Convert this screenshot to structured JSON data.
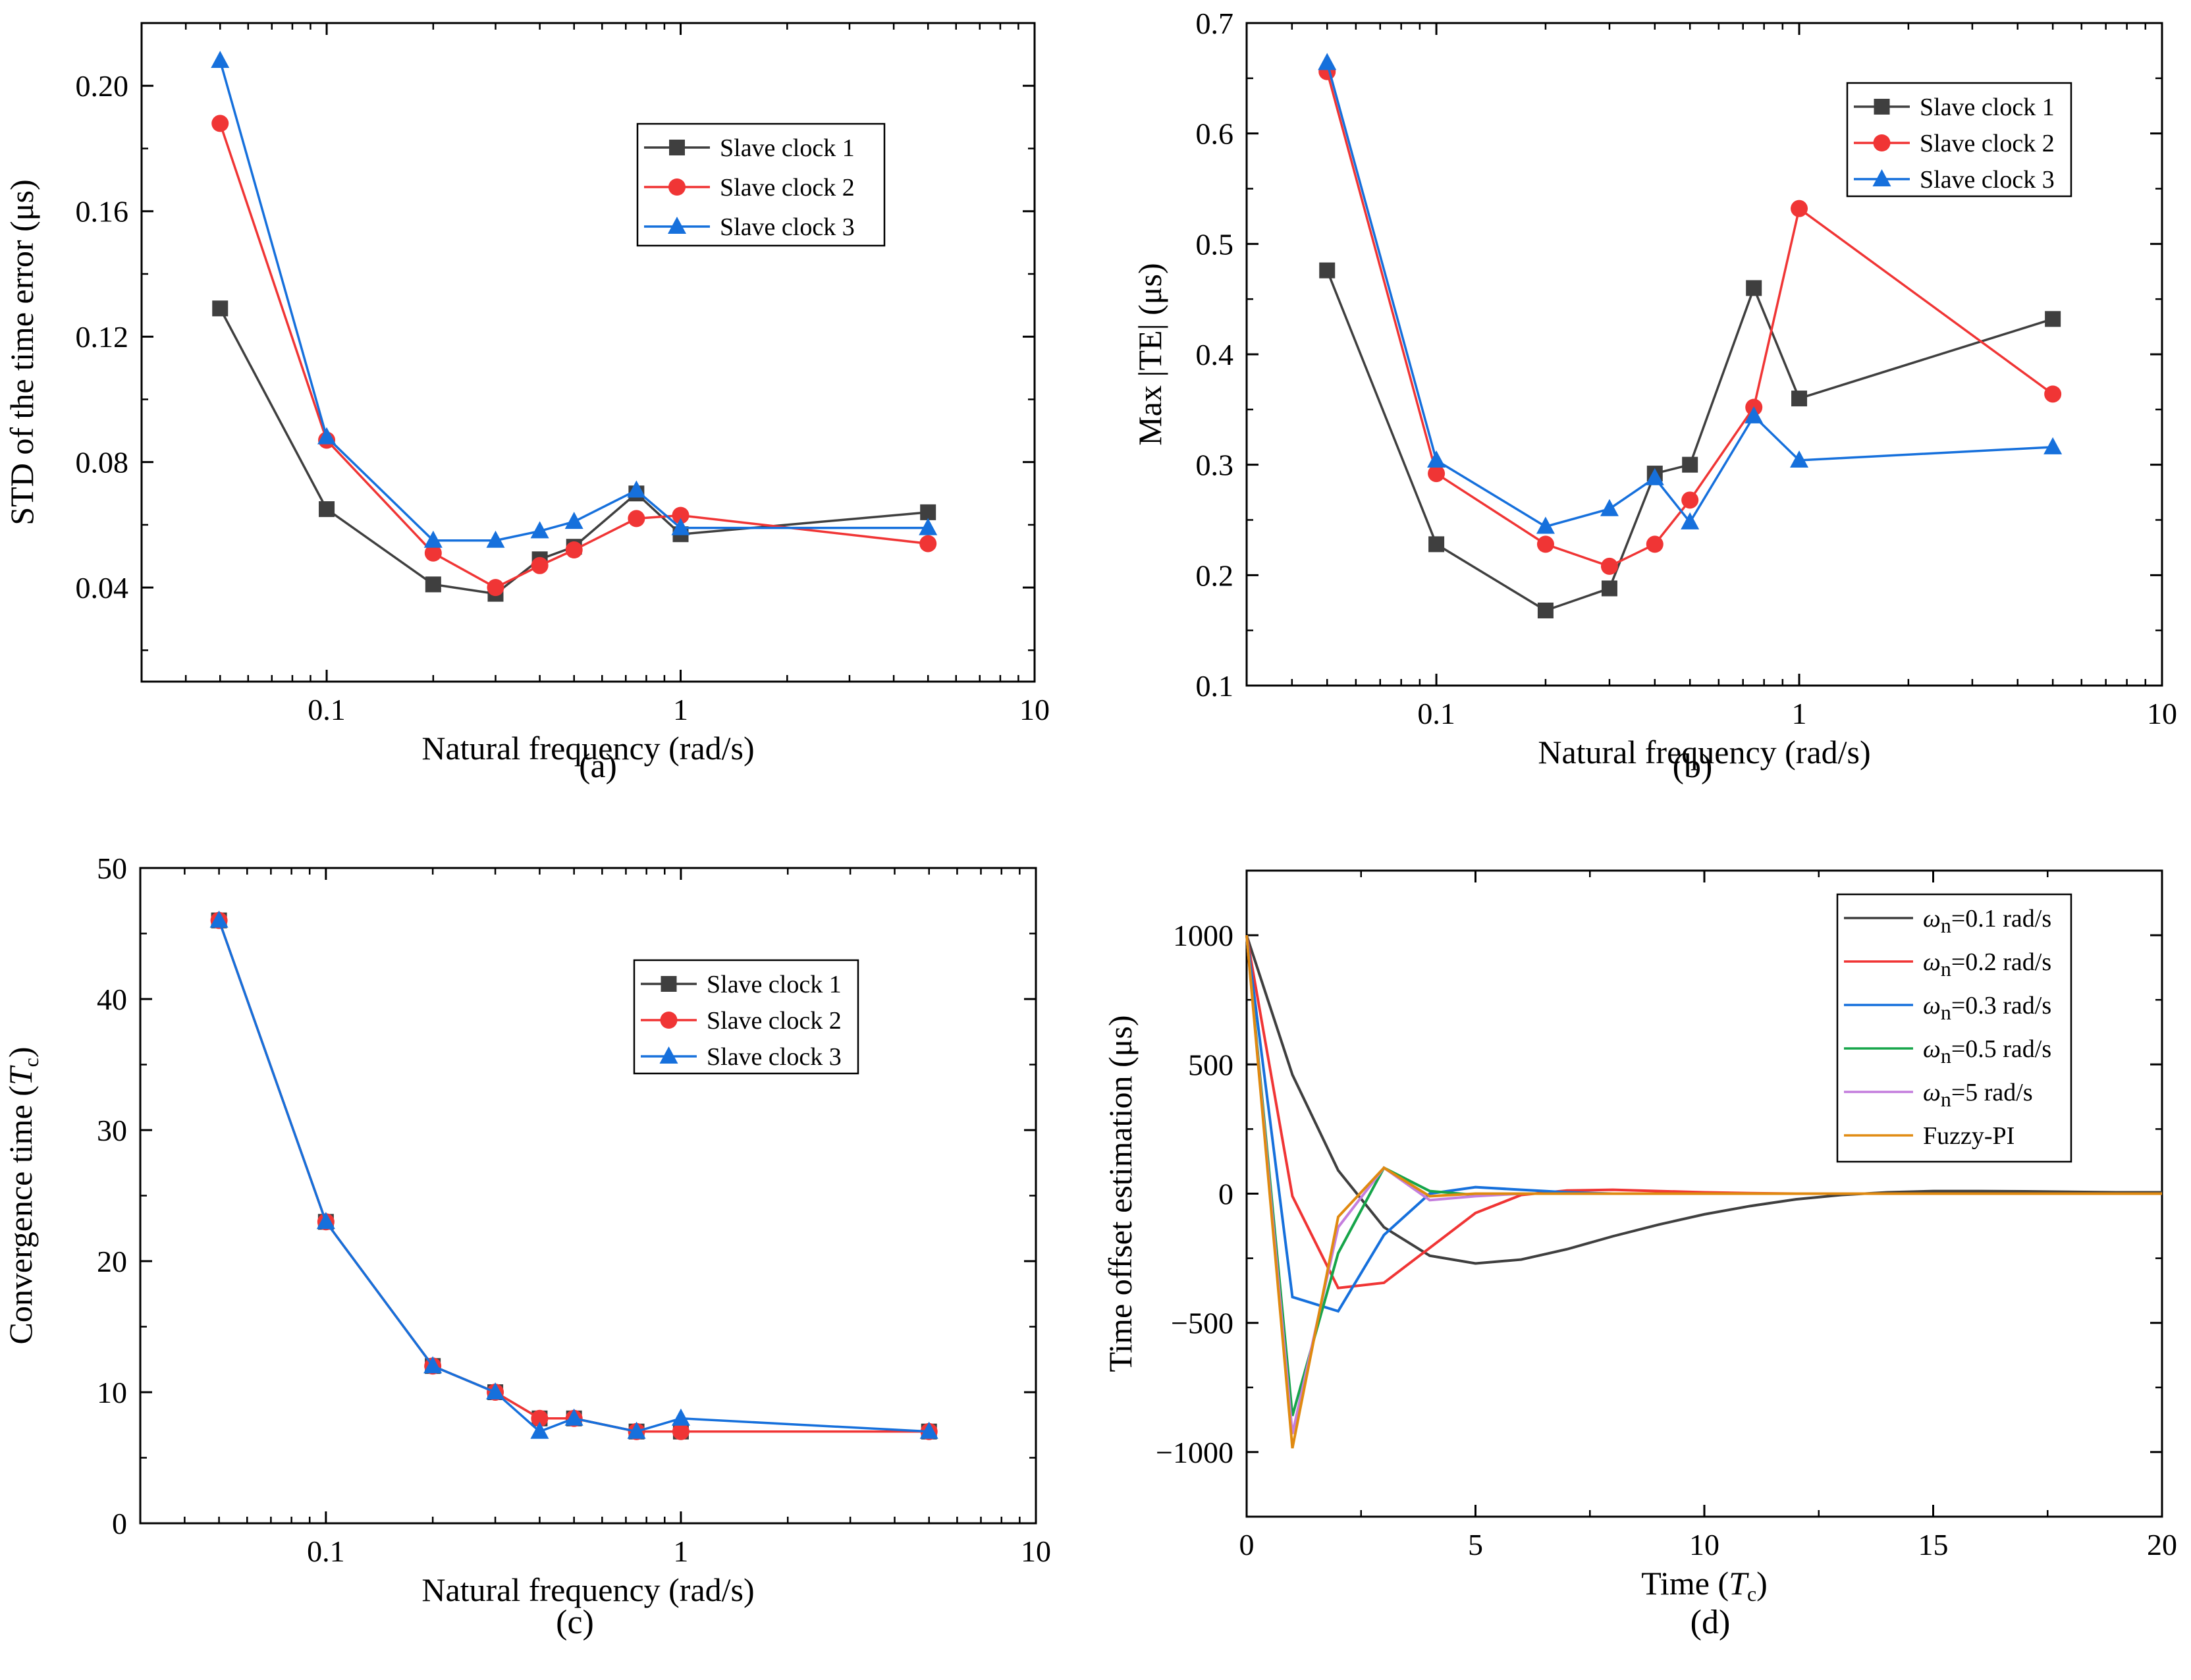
{
  "colors": {
    "s1": "#3f3f3f",
    "s2": "#f03535",
    "s3": "#1670dc",
    "wn01": "#3f3f3f",
    "wn02": "#f03535",
    "wn03": "#1670dc",
    "wn05": "#16a54a",
    "wn5": "#c47edd",
    "fuzzy": "#e08a10"
  },
  "chart_data": [
    {
      "panel": "(a)",
      "type": "line",
      "xscale": "log",
      "xlim": [
        0.03,
        10
      ],
      "ylim": [
        0.01,
        0.22
      ],
      "xticks": [
        0.1,
        1,
        10
      ],
      "xtick_labels": [
        "0.1",
        "1",
        "10"
      ],
      "yticks": [
        0.04,
        0.08,
        0.12,
        0.16,
        0.2
      ],
      "ytick_labels": [
        "0.04",
        "0.08",
        "0.12",
        "0.16",
        "0.20"
      ],
      "xlabel": "Natural frequency (rad/s)",
      "ylabel": "STD of the time error (μs)",
      "legend_position": "top-right",
      "x": [
        0.05,
        0.1,
        0.2,
        0.3,
        0.4,
        0.5,
        0.75,
        1,
        5
      ],
      "series": [
        {
          "name": "Slave clock 1",
          "marker": "square",
          "color_key": "s1",
          "values": [
            0.129,
            0.065,
            0.041,
            0.038,
            0.049,
            0.053,
            0.07,
            0.057,
            0.064
          ]
        },
        {
          "name": "Slave clock 2",
          "marker": "circle",
          "color_key": "s2",
          "values": [
            0.188,
            0.087,
            0.051,
            0.04,
            0.047,
            0.052,
            0.062,
            0.063,
            0.054
          ]
        },
        {
          "name": "Slave clock 3",
          "marker": "triangle",
          "color_key": "s3",
          "values": [
            0.208,
            0.088,
            0.055,
            0.055,
            0.058,
            0.061,
            0.071,
            0.059,
            0.059
          ]
        }
      ]
    },
    {
      "panel": "(b)",
      "type": "line",
      "xscale": "log",
      "xlim": [
        0.03,
        10
      ],
      "ylim": [
        0.1,
        0.7
      ],
      "xticks": [
        0.1,
        1,
        10
      ],
      "xtick_labels": [
        "0.1",
        "1",
        "10"
      ],
      "yticks": [
        0.1,
        0.2,
        0.3,
        0.4,
        0.5,
        0.6,
        0.7
      ],
      "ytick_labels": [
        "0.1",
        "0.2",
        "0.3",
        "0.4",
        "0.5",
        "0.6",
        "0.7"
      ],
      "xlabel": "Natural frequency (rad/s)",
      "ylabel": "Max |TE| (μs)",
      "legend_position": "top-right",
      "x": [
        0.05,
        0.1,
        0.2,
        0.3,
        0.4,
        0.5,
        0.75,
        1,
        5
      ],
      "series": [
        {
          "name": "Slave clock 1",
          "marker": "square",
          "color_key": "s1",
          "values": [
            0.476,
            0.228,
            0.168,
            0.188,
            0.292,
            0.3,
            0.46,
            0.36,
            0.432
          ]
        },
        {
          "name": "Slave clock 2",
          "marker": "circle",
          "color_key": "s2",
          "values": [
            0.656,
            0.292,
            0.228,
            0.208,
            0.228,
            0.268,
            0.352,
            0.532,
            0.364
          ]
        },
        {
          "name": "Slave clock 3",
          "marker": "triangle",
          "color_key": "s3",
          "values": [
            0.664,
            0.304,
            0.244,
            0.26,
            0.288,
            0.248,
            0.344,
            0.304,
            0.316
          ]
        }
      ]
    },
    {
      "panel": "(c)",
      "type": "line",
      "xscale": "log",
      "xlim": [
        0.03,
        10
      ],
      "ylim": [
        0,
        50
      ],
      "xticks": [
        0.1,
        1,
        10
      ],
      "xtick_labels": [
        "0.1",
        "1",
        "10"
      ],
      "yticks": [
        0,
        10,
        20,
        30,
        40,
        50
      ],
      "ytick_labels": [
        "0",
        "10",
        "20",
        "30",
        "40",
        "50"
      ],
      "xlabel": "Natural frequency (rad/s)",
      "ylabel": "Convergence time (",
      "ylabel_italic": "T",
      "ylabel_sub": "c",
      "ylabel_end": ")",
      "legend_position": "top-right",
      "x": [
        0.05,
        0.1,
        0.2,
        0.3,
        0.4,
        0.5,
        0.75,
        1,
        5
      ],
      "series": [
        {
          "name": "Slave clock 1",
          "marker": "square",
          "color_key": "s1",
          "values": [
            46,
            23,
            12,
            10,
            8,
            8,
            7,
            7,
            7
          ]
        },
        {
          "name": "Slave clock 2",
          "marker": "circle",
          "color_key": "s2",
          "values": [
            46,
            23,
            12,
            10,
            8,
            8,
            7,
            7,
            7
          ]
        },
        {
          "name": "Slave clock 3",
          "marker": "triangle",
          "color_key": "s3",
          "values": [
            46,
            23,
            12,
            10,
            7,
            8,
            7,
            8,
            7
          ]
        }
      ]
    },
    {
      "panel": "(d)",
      "type": "line",
      "xscale": "linear",
      "xlim": [
        0,
        20
      ],
      "ylim": [
        -1250,
        1250
      ],
      "xticks": [
        0,
        5,
        10,
        15,
        20
      ],
      "xtick_labels": [
        "0",
        "5",
        "10",
        "15",
        "20"
      ],
      "yticks": [
        -1000,
        -500,
        0,
        500,
        1000
      ],
      "ytick_labels": [
        "−1000",
        "−500",
        "0",
        "500",
        "1000"
      ],
      "xlabel": "Time (",
      "xlabel_italic": "T",
      "xlabel_sub": "c",
      "xlabel_end": ")",
      "ylabel": "Time offset estimation (μs)",
      "legend_position": "top-right",
      "series": [
        {
          "name": "ω",
          "sub": "n",
          "suffix": "=0.1 rad/s",
          "color_key": "wn01",
          "x": [
            0,
            1,
            2,
            3,
            4,
            5,
            6,
            7,
            8,
            9,
            10,
            11,
            12,
            13,
            14,
            15,
            16,
            17,
            18,
            19,
            20
          ],
          "values": [
            1000,
            460,
            90,
            -130,
            -240,
            -270,
            -255,
            -215,
            -165,
            -120,
            -80,
            -48,
            -22,
            -5,
            5,
            10,
            10,
            9,
            7,
            5,
            5
          ]
        },
        {
          "name": "ω",
          "sub": "n",
          "suffix": "=0.2 rad/s",
          "color_key": "wn02",
          "x": [
            0,
            1,
            2,
            3,
            4,
            5,
            6,
            7,
            8,
            9,
            10,
            11,
            12,
            13,
            14,
            15,
            16,
            17,
            18,
            19,
            20
          ],
          "values": [
            1000,
            -10,
            -365,
            -345,
            -210,
            -75,
            -5,
            12,
            15,
            10,
            5,
            2,
            0,
            0,
            0,
            0,
            0,
            0,
            0,
            0,
            0
          ]
        },
        {
          "name": "ω",
          "sub": "n",
          "suffix": "=0.3 rad/s",
          "color_key": "wn03",
          "x": [
            0,
            1,
            2,
            3,
            4,
            5,
            6,
            7,
            8,
            9,
            10,
            11,
            12,
            13,
            14,
            15,
            16,
            17,
            18,
            19,
            20
          ],
          "values": [
            1000,
            -400,
            -455,
            -160,
            0,
            25,
            15,
            5,
            0,
            0,
            0,
            0,
            0,
            0,
            0,
            0,
            0,
            0,
            0,
            0,
            0
          ]
        },
        {
          "name": "ω",
          "sub": "n",
          "suffix": "=0.5 rad/s",
          "color_key": "wn05",
          "x": [
            0,
            1,
            2,
            3,
            4,
            5,
            6,
            7,
            8,
            9,
            10,
            11,
            12,
            13,
            14,
            15,
            16,
            17,
            18,
            19,
            20
          ],
          "values": [
            1000,
            -860,
            -230,
            100,
            10,
            -5,
            0,
            0,
            0,
            0,
            0,
            0,
            0,
            0,
            0,
            0,
            0,
            0,
            0,
            0,
            0
          ]
        },
        {
          "name": "ω",
          "sub": "n",
          "suffix": "=5 rad/s",
          "color_key": "wn5",
          "x": [
            0,
            1,
            2,
            3,
            4,
            5,
            6,
            7,
            8,
            9,
            10,
            11,
            12,
            13,
            14,
            15,
            16,
            17,
            18,
            19,
            20
          ],
          "values": [
            1000,
            -930,
            -130,
            100,
            -25,
            -10,
            0,
            0,
            0,
            0,
            0,
            0,
            0,
            0,
            0,
            0,
            0,
            0,
            0,
            0,
            0
          ]
        },
        {
          "name": "Fuzzy-PI",
          "color_key": "fuzzy",
          "x": [
            0,
            1,
            2,
            3,
            4,
            5,
            6,
            7,
            8,
            9,
            10,
            11,
            12,
            13,
            14,
            15,
            16,
            17,
            18,
            19,
            20
          ],
          "values": [
            1000,
            -985,
            -90,
            100,
            -10,
            0,
            0,
            0,
            0,
            0,
            0,
            0,
            0,
            0,
            0,
            0,
            0,
            0,
            0,
            0,
            0
          ]
        }
      ]
    }
  ]
}
